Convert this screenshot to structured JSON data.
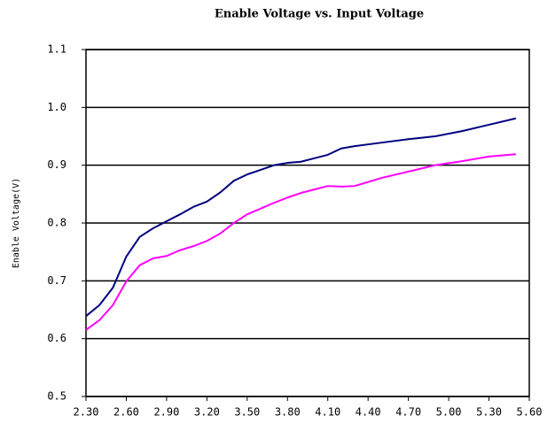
{
  "chart_data": {
    "type": "line",
    "title": "Enable Voltage vs. Input Voltage",
    "y_label": "Enable Voltage(V)",
    "x": [
      2.3,
      2.4,
      2.5,
      2.6,
      2.7,
      2.8,
      2.9,
      3.0,
      3.1,
      3.2,
      3.3,
      3.4,
      3.5,
      3.6,
      3.7,
      3.8,
      3.9,
      4.0,
      4.1,
      4.2,
      4.3,
      4.5,
      4.7,
      4.9,
      5.1,
      5.3,
      5.5
    ],
    "series": [
      {
        "color": "#000080",
        "values": [
          0.639,
          0.658,
          0.688,
          0.742,
          0.776,
          0.791,
          0.803,
          0.815,
          0.828,
          0.837,
          0.853,
          0.873,
          0.884,
          0.892,
          0.9,
          0.904,
          0.906,
          0.912,
          0.918,
          0.929,
          0.933,
          0.939,
          0.945,
          0.95,
          0.959,
          0.97,
          0.981
        ]
      },
      {
        "color": "#ff00ff",
        "values": [
          0.615,
          0.632,
          0.658,
          0.699,
          0.727,
          0.739,
          0.743,
          0.753,
          0.76,
          0.769,
          0.782,
          0.8,
          0.815,
          0.825,
          0.835,
          0.844,
          0.852,
          0.858,
          0.864,
          0.863,
          0.864,
          0.878,
          0.889,
          0.9,
          0.907,
          0.915,
          0.919
        ]
      }
    ],
    "xlim": [
      2.3,
      5.6
    ],
    "xticks": [
      {
        "value": 2.3,
        "label": "2.30"
      },
      {
        "value": 2.6,
        "label": "2.60"
      },
      {
        "value": 2.9,
        "label": "2.90"
      },
      {
        "value": 3.2,
        "label": "3.20"
      },
      {
        "value": 3.5,
        "label": "3.50"
      },
      {
        "value": 3.8,
        "label": "3.80"
      },
      {
        "value": 4.1,
        "label": "4.10"
      },
      {
        "value": 4.4,
        "label": "4.40"
      },
      {
        "value": 4.7,
        "label": "4.70"
      },
      {
        "value": 5.0,
        "label": "5.00"
      },
      {
        "value": 5.3,
        "label": "5.30"
      },
      {
        "value": 5.6,
        "label": "5.60"
      }
    ],
    "ylim": [
      0.5,
      1.1
    ],
    "yticks": [
      0.5,
      0.6,
      0.7,
      0.8,
      0.9,
      {
        "value": 1.0,
        "label": "1.0"
      },
      1.1
    ],
    "grid": true
  }
}
